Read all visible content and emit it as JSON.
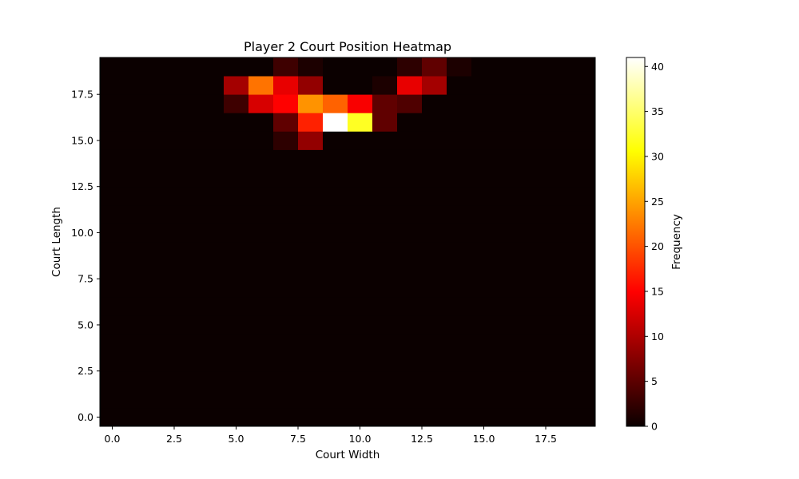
{
  "chart_data": {
    "type": "heatmap",
    "title": "Player 2 Court Position Heatmap",
    "xlabel": "Court Width",
    "ylabel": "Court Length",
    "xlim": [
      -0.5,
      19.5
    ],
    "ylim": [
      -0.5,
      19.5
    ],
    "x_ticks": [
      0,
      2.5,
      5,
      7.5,
      10,
      12.5,
      15,
      17.5
    ],
    "x_tick_labels": [
      "0.0",
      "2.5",
      "5.0",
      "7.5",
      "10.0",
      "12.5",
      "15.0",
      "17.5"
    ],
    "y_ticks": [
      0,
      2.5,
      5,
      7.5,
      10,
      12.5,
      15,
      17.5
    ],
    "y_tick_labels": [
      "0.0",
      "2.5",
      "5.0",
      "7.5",
      "10.0",
      "12.5",
      "15.0",
      "17.5"
    ],
    "colormap": "hot",
    "colorbar": {
      "label": "Frequency",
      "range": [
        0,
        41
      ],
      "ticks": [
        0,
        5,
        10,
        15,
        20,
        25,
        30,
        35,
        40
      ],
      "tick_labels": [
        "0",
        "5",
        "10",
        "15",
        "20",
        "25",
        "30",
        "35",
        "40"
      ]
    },
    "grid": false,
    "nonzero_cells": [
      {
        "x": 7,
        "y": 19,
        "v": 3
      },
      {
        "x": 8,
        "y": 19,
        "v": 1
      },
      {
        "x": 12,
        "y": 19,
        "v": 2
      },
      {
        "x": 13,
        "y": 19,
        "v": 5
      },
      {
        "x": 14,
        "y": 19,
        "v": 1
      },
      {
        "x": 5,
        "y": 18,
        "v": 9
      },
      {
        "x": 6,
        "y": 18,
        "v": 22
      },
      {
        "x": 7,
        "y": 18,
        "v": 13
      },
      {
        "x": 8,
        "y": 18,
        "v": 8
      },
      {
        "x": 11,
        "y": 18,
        "v": 1
      },
      {
        "x": 12,
        "y": 18,
        "v": 13
      },
      {
        "x": 13,
        "y": 18,
        "v": 9
      },
      {
        "x": 5,
        "y": 17,
        "v": 3
      },
      {
        "x": 6,
        "y": 17,
        "v": 12
      },
      {
        "x": 7,
        "y": 17,
        "v": 15
      },
      {
        "x": 8,
        "y": 17,
        "v": 24
      },
      {
        "x": 9,
        "y": 17,
        "v": 21
      },
      {
        "x": 10,
        "y": 17,
        "v": 14
      },
      {
        "x": 11,
        "y": 17,
        "v": 5
      },
      {
        "x": 12,
        "y": 17,
        "v": 4
      },
      {
        "x": 7,
        "y": 16,
        "v": 5
      },
      {
        "x": 8,
        "y": 16,
        "v": 17
      },
      {
        "x": 9,
        "y": 16,
        "v": 41
      },
      {
        "x": 10,
        "y": 16,
        "v": 32
      },
      {
        "x": 11,
        "y": 16,
        "v": 5
      },
      {
        "x": 7,
        "y": 15,
        "v": 2
      },
      {
        "x": 8,
        "y": 15,
        "v": 8
      }
    ]
  }
}
